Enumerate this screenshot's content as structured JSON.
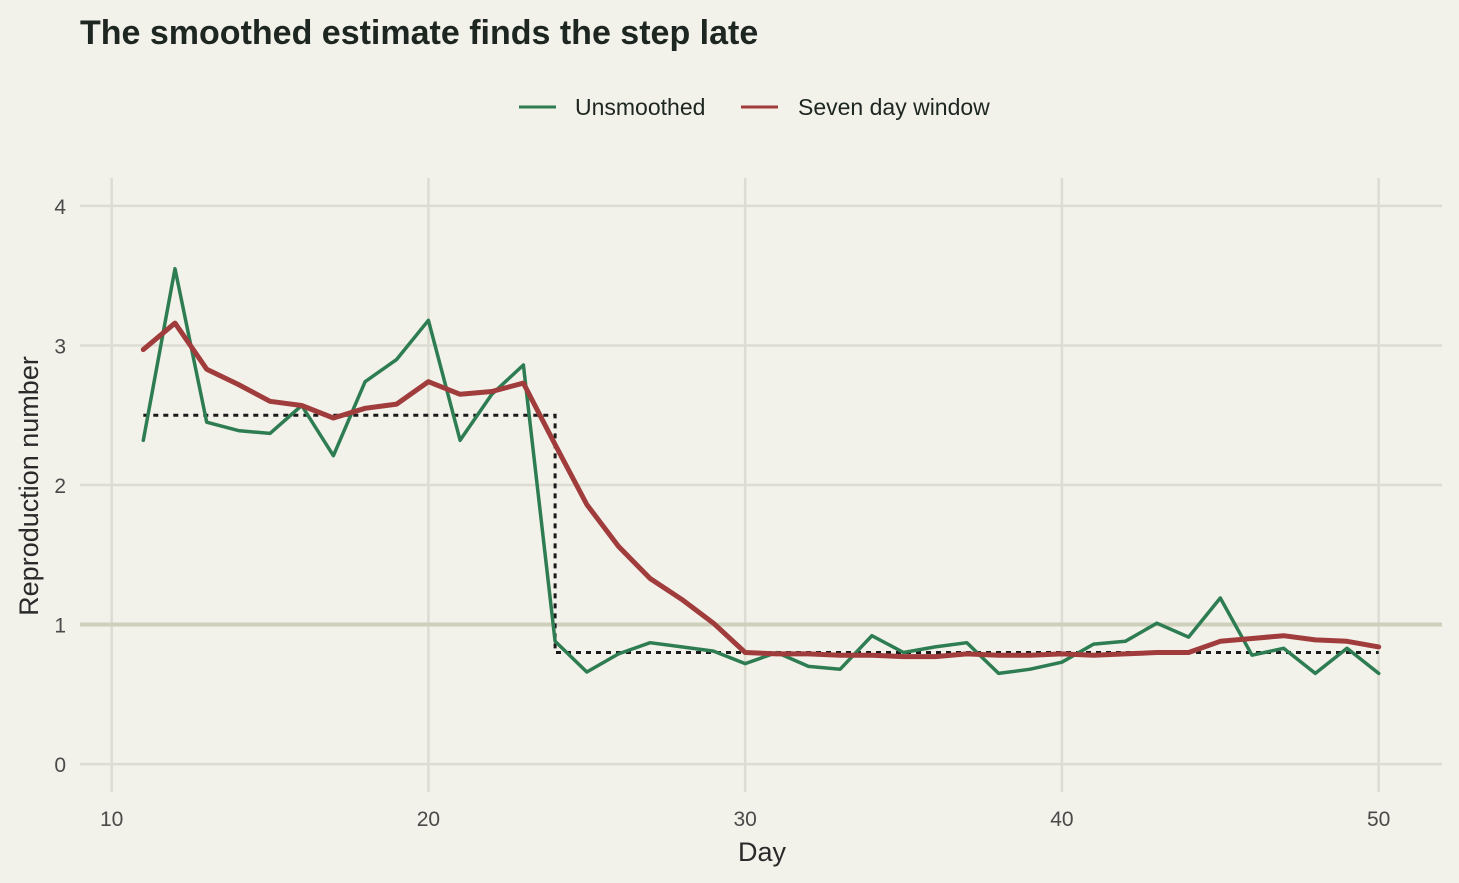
{
  "chart_data": {
    "type": "line",
    "title": "The smoothed estimate finds the step late",
    "xlabel": "Day",
    "ylabel": "Reproduction number",
    "xlim": [
      9,
      52
    ],
    "ylim": [
      -0.2,
      4.2
    ],
    "x_ticks": [
      10,
      20,
      30,
      40,
      50
    ],
    "y_ticks": [
      0,
      1,
      2,
      3,
      4
    ],
    "x_tick_labels": [
      "10",
      "20",
      "30",
      "40",
      "50"
    ],
    "y_tick_labels": [
      "0",
      "1",
      "2",
      "3",
      "4"
    ],
    "grid": true,
    "legend_position": "top",
    "reference_line": 1,
    "x": [
      11,
      12,
      13,
      14,
      15,
      16,
      17,
      18,
      19,
      20,
      21,
      22,
      23,
      24,
      25,
      26,
      27,
      28,
      29,
      30,
      31,
      32,
      33,
      34,
      35,
      36,
      37,
      38,
      39,
      40,
      41,
      42,
      43,
      44,
      45,
      46,
      47,
      48,
      49,
      50
    ],
    "series": [
      {
        "name": "Unsmoothed",
        "color": "#2e7d52",
        "values": [
          2.32,
          3.55,
          2.45,
          2.39,
          2.37,
          2.57,
          2.21,
          2.74,
          2.9,
          3.18,
          2.32,
          2.65,
          2.86,
          0.88,
          0.66,
          0.79,
          0.87,
          0.84,
          0.81,
          0.72,
          0.8,
          0.7,
          0.68,
          0.92,
          0.8,
          0.84,
          0.87,
          0.65,
          0.68,
          0.73,
          0.86,
          0.88,
          1.01,
          0.91,
          1.19,
          0.78,
          0.83,
          0.65,
          0.83,
          0.65
        ]
      },
      {
        "name": "Seven day window",
        "color": "#a03c3c",
        "values": [
          2.97,
          3.16,
          2.83,
          2.72,
          2.6,
          2.57,
          2.48,
          2.55,
          2.58,
          2.74,
          2.65,
          2.67,
          2.73,
          2.29,
          1.86,
          1.56,
          1.33,
          1.18,
          1.01,
          0.8,
          0.79,
          0.79,
          0.78,
          0.78,
          0.77,
          0.77,
          0.79,
          0.78,
          0.78,
          0.79,
          0.78,
          0.79,
          0.8,
          0.8,
          0.88,
          0.9,
          0.92,
          0.89,
          0.88,
          0.84
        ]
      }
    ],
    "true_step": {
      "color": "#1a1a1a",
      "x": [
        11,
        24,
        24,
        50
      ],
      "values": [
        2.5,
        2.5,
        0.8,
        0.8
      ]
    }
  }
}
